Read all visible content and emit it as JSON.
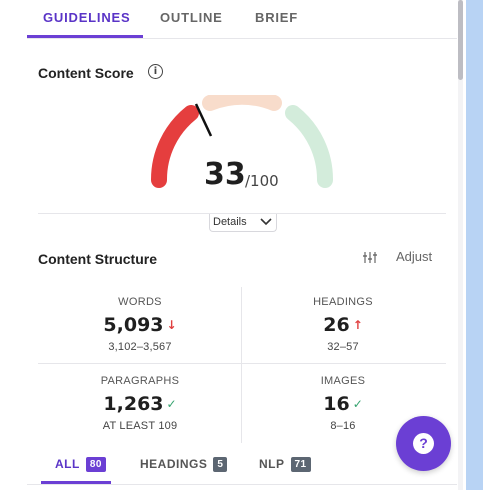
{
  "tabs": [
    {
      "label": "GUIDELINES",
      "active": true
    },
    {
      "label": "OUTLINE",
      "active": false
    },
    {
      "label": "BRIEF",
      "active": false
    }
  ],
  "content_score": {
    "title": "Content Score",
    "info_icon": "info-circle-icon",
    "value": "33",
    "max": "/100",
    "details_label": "Details",
    "gauge_colors": {
      "low": "#e53e3e",
      "mid": "#f8dccb",
      "high": "#d3ecdb",
      "needle": "#111111"
    }
  },
  "content_structure": {
    "title": "Content Structure",
    "adjust_label": "Adjust",
    "adjust_icon": "sliders-icon",
    "metrics": [
      {
        "label": "WORDS",
        "value": "5,093",
        "trend": "↓",
        "trend_type": "down",
        "range": "3,102–3,567"
      },
      {
        "label": "HEADINGS",
        "value": "26",
        "trend": "↑",
        "trend_type": "up",
        "range": "32–57"
      },
      {
        "label": "PARAGRAPHS",
        "value": "1,263",
        "trend": "✓",
        "trend_type": "ok",
        "range": "AT LEAST 109"
      },
      {
        "label": "IMAGES",
        "value": "16",
        "trend": "✓",
        "trend_type": "ok",
        "range": "8–16"
      }
    ]
  },
  "filters": [
    {
      "label": "ALL",
      "count": "80",
      "active": true
    },
    {
      "label": "HEADINGS",
      "count": "5",
      "active": false
    },
    {
      "label": "NLP",
      "count": "71",
      "active": false
    }
  ],
  "help_button": {
    "icon": "question-mark-icon",
    "glyph": "?"
  },
  "colors": {
    "accent": "#6b3fd4",
    "side_strip": "#b8d3f4"
  }
}
